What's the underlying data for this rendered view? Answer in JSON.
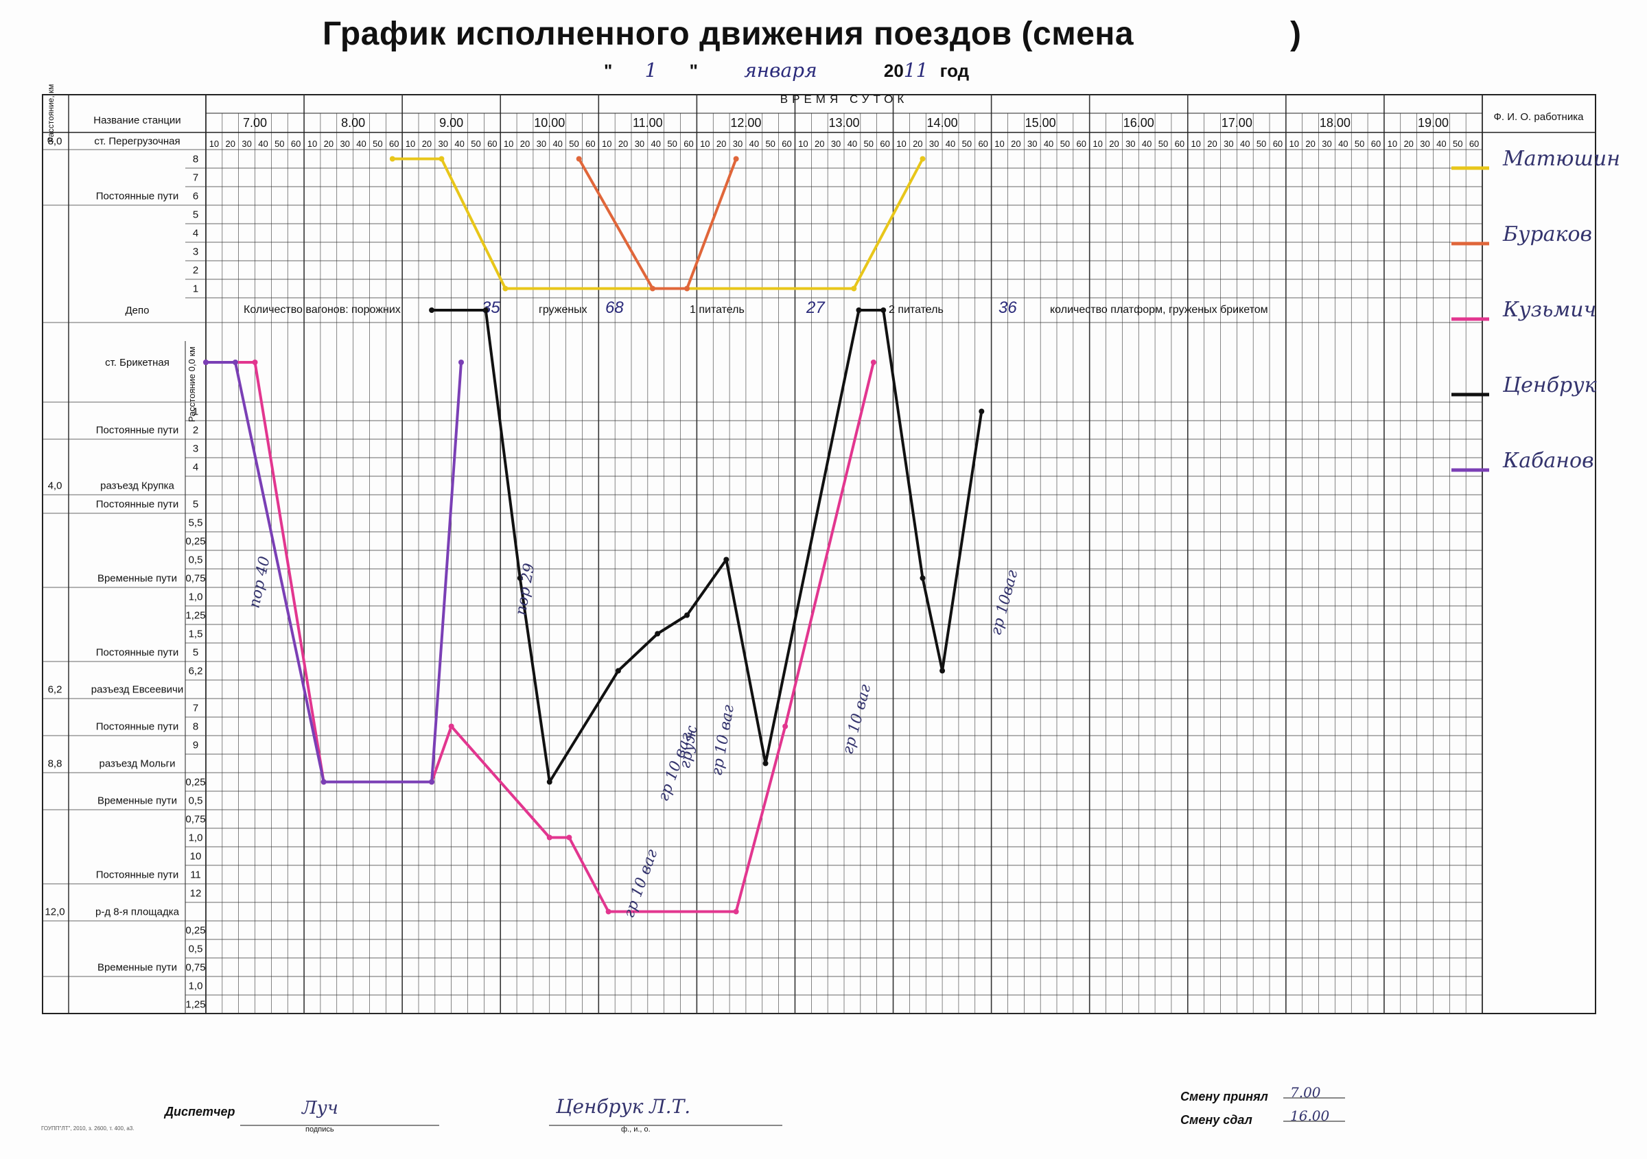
{
  "header": {
    "title": "График исполненного движения поездов (смена",
    "title_close": ")",
    "date_quote_open": "\"",
    "date_day": "1",
    "date_quote_close": "\"",
    "date_month": "января",
    "year_prefix": "20",
    "year_suffix": "11",
    "year_label": "год"
  },
  "table": {
    "col_distance": "Расстояние, км",
    "col_station": "Название станции",
    "col_time": "ВРЕМЯ СУТОК",
    "col_worker": "Ф. И. О. работника",
    "distance_axis_label": "Расстояние 0,0 км",
    "hours": [
      "7.00",
      "8.00",
      "9.00",
      "10.00",
      "11.00",
      "12.00",
      "13.00",
      "14.00",
      "15.00",
      "16.00",
      "17.00",
      "18.00",
      "19.00"
    ],
    "minute_ticks": [
      "10",
      "20",
      "30",
      "40",
      "50",
      "60"
    ]
  },
  "rows": [
    {
      "dist": "8,0",
      "station": "ст. Перегрузочная",
      "sub": "",
      "h": 25
    },
    {
      "dist": "",
      "station": "",
      "sub": "8",
      "h": 27
    },
    {
      "dist": "",
      "station": "",
      "sub": "7",
      "h": 27
    },
    {
      "dist": "",
      "station": "Постоянные пути",
      "sub": "6",
      "h": 27
    },
    {
      "dist": "",
      "station": "",
      "sub": "5",
      "h": 27
    },
    {
      "dist": "",
      "station": "",
      "sub": "4",
      "h": 27
    },
    {
      "dist": "",
      "station": "",
      "sub": "3",
      "h": 27
    },
    {
      "dist": "",
      "station": "",
      "sub": "2",
      "h": 27
    },
    {
      "dist": "",
      "station": "",
      "sub": "1",
      "h": 27
    },
    {
      "dist": "",
      "station": "Депо",
      "sub": "",
      "h": 36
    },
    {
      "dist": "",
      "station": "ст. Брикетная",
      "sub": "",
      "h": 116
    },
    {
      "dist": "",
      "station": "",
      "sub": "1",
      "h": 27
    },
    {
      "dist": "",
      "station": "Постоянные пути",
      "sub": "2",
      "h": 27
    },
    {
      "dist": "",
      "station": "",
      "sub": "3",
      "h": 27
    },
    {
      "dist": "",
      "station": "",
      "sub": "4",
      "h": 27
    },
    {
      "dist": "4,0",
      "station": "разъезд Крупка",
      "sub": "",
      "h": 27
    },
    {
      "dist": "",
      "station": "Постоянные пути",
      "sub": "5",
      "h": 27
    },
    {
      "dist": "",
      "station": "",
      "sub": "5,5",
      "h": 27
    },
    {
      "dist": "",
      "station": "",
      "sub": "0,25",
      "h": 27
    },
    {
      "dist": "",
      "station": "",
      "sub": "0,5",
      "h": 27
    },
    {
      "dist": "",
      "station": "Временные пути",
      "sub": "0,75",
      "h": 27
    },
    {
      "dist": "",
      "station": "",
      "sub": "1,0",
      "h": 27
    },
    {
      "dist": "",
      "station": "",
      "sub": "1,25",
      "h": 27
    },
    {
      "dist": "",
      "station": "",
      "sub": "1,5",
      "h": 27
    },
    {
      "dist": "",
      "station": "Постоянные пути",
      "sub": "5",
      "h": 27
    },
    {
      "dist": "",
      "station": "",
      "sub": "6,2",
      "h": 27
    },
    {
      "dist": "6,2",
      "station": "разъезд Евсеевичи",
      "sub": "",
      "h": 27
    },
    {
      "dist": "",
      "station": "",
      "sub": "7",
      "h": 27
    },
    {
      "dist": "",
      "station": "Постоянные пути",
      "sub": "8",
      "h": 27
    },
    {
      "dist": "",
      "station": "",
      "sub": "9",
      "h": 27
    },
    {
      "dist": "8,8",
      "station": "разъезд Мольги",
      "sub": "",
      "h": 27
    },
    {
      "dist": "",
      "station": "",
      "sub": "0,25",
      "h": 27
    },
    {
      "dist": "",
      "station": "Временные пути",
      "sub": "0,5",
      "h": 27
    },
    {
      "dist": "",
      "station": "",
      "sub": "0,75",
      "h": 27
    },
    {
      "dist": "",
      "station": "",
      "sub": "1,0",
      "h": 27
    },
    {
      "dist": "",
      "station": "",
      "sub": "10",
      "h": 27
    },
    {
      "dist": "",
      "station": "Постоянные пути",
      "sub": "11",
      "h": 27
    },
    {
      "dist": "",
      "station": "",
      "sub": "12",
      "h": 27
    },
    {
      "dist": "12,0",
      "station": "р-д 8-я площадка",
      "sub": "",
      "h": 27
    },
    {
      "dist": "",
      "station": "",
      "sub": "0,25",
      "h": 27
    },
    {
      "dist": "",
      "station": "",
      "sub": "0,5",
      "h": 27
    },
    {
      "dist": "",
      "station": "Временные пути",
      "sub": "0,75",
      "h": 27
    },
    {
      "dist": "",
      "station": "",
      "sub": "1,0",
      "h": 27
    },
    {
      "dist": "",
      "station": "",
      "sub": "1,25",
      "h": 27
    }
  ],
  "wagons": {
    "label_empty": "Количество вагонов: порожних",
    "empty": "35",
    "label_loaded": "груженых",
    "loaded": "68",
    "label_feeder1": "1 питатель",
    "feeder1": "27",
    "label_feeder2": "2 питатель",
    "feeder2": "36",
    "label_platforms": "количество платформ, груженых брикетом"
  },
  "workers": [
    {
      "name": "Матюшин",
      "color": "#e8c61a"
    },
    {
      "name": "Бураков",
      "color": "#e0663a"
    },
    {
      "name": "Кузьмич",
      "color": "#e2368f"
    },
    {
      "name": "Ценбрук",
      "color": "#111111"
    },
    {
      "name": "Кабанов",
      "color": "#7a3fb5"
    }
  ],
  "train_notes": [
    "пор 40",
    "пор 29",
    "гр 10 ваг",
    "гр 10 ваг",
    "гр 10 ваг",
    "гр 10ваг",
    "груж",
    "гр 10 ваг"
  ],
  "footer": {
    "dispatcher_label": "Диспетчер",
    "dispatcher_sign": "Луч",
    "signature_caption": "подпись",
    "dispatcher_name": "Ценбрук Л.Т.",
    "name_caption": "ф., и., о.",
    "shift_received_label": "Смену принял",
    "shift_received": "7.00",
    "shift_handed_label": "Смену сдал",
    "shift_handed": "16.00",
    "print_code": "ГОУПП\"ЛТ\", 2010, з. 2600, т. 400, а3."
  },
  "chart_data": {
    "type": "line",
    "title": "График исполненного движения поездов",
    "xlabel": "ВРЕМЯ СУТОК",
    "ylabel": "Расстояние, км",
    "series": [
      {
        "name": "Матюшин",
        "color": "#e8c61a",
        "points": [
          [
            8.9,
            1
          ],
          [
            9.4,
            1
          ],
          [
            10.05,
            8
          ],
          [
            13.6,
            8
          ],
          [
            14.3,
            1
          ]
        ]
      },
      {
        "name": "Бураков",
        "color": "#e0663a",
        "points": [
          [
            10.8,
            1
          ],
          [
            11.55,
            8
          ],
          [
            11.9,
            8
          ],
          [
            12.4,
            1
          ]
        ]
      },
      {
        "name": "Кузьмич",
        "color": "#e2368f",
        "points": [
          [
            7.0,
            10
          ],
          [
            7.5,
            10
          ],
          [
            8.2,
            31
          ],
          [
            9.3,
            31
          ],
          [
            9.5,
            28
          ],
          [
            10.5,
            34
          ],
          [
            10.7,
            34
          ],
          [
            11.1,
            38
          ],
          [
            12.4,
            38
          ],
          [
            12.9,
            28
          ],
          [
            13.8,
            10
          ]
        ]
      },
      {
        "name": "Ценбрук",
        "color": "#111111",
        "points": [
          [
            9.3,
            9
          ],
          [
            9.85,
            9
          ],
          [
            10.2,
            20
          ],
          [
            10.5,
            31
          ],
          [
            11.2,
            25
          ],
          [
            11.6,
            23
          ],
          [
            11.9,
            22
          ],
          [
            12.3,
            19
          ],
          [
            12.7,
            30
          ],
          [
            13.65,
            9
          ],
          [
            13.9,
            9
          ],
          [
            14.3,
            20
          ],
          [
            14.5,
            25
          ],
          [
            14.9,
            11
          ]
        ]
      },
      {
        "name": "Кабанов",
        "color": "#7a3fb5",
        "points": [
          [
            7.0,
            10
          ],
          [
            7.3,
            10
          ],
          [
            8.2,
            31
          ],
          [
            9.3,
            31
          ],
          [
            9.6,
            10
          ]
        ]
      }
    ]
  }
}
